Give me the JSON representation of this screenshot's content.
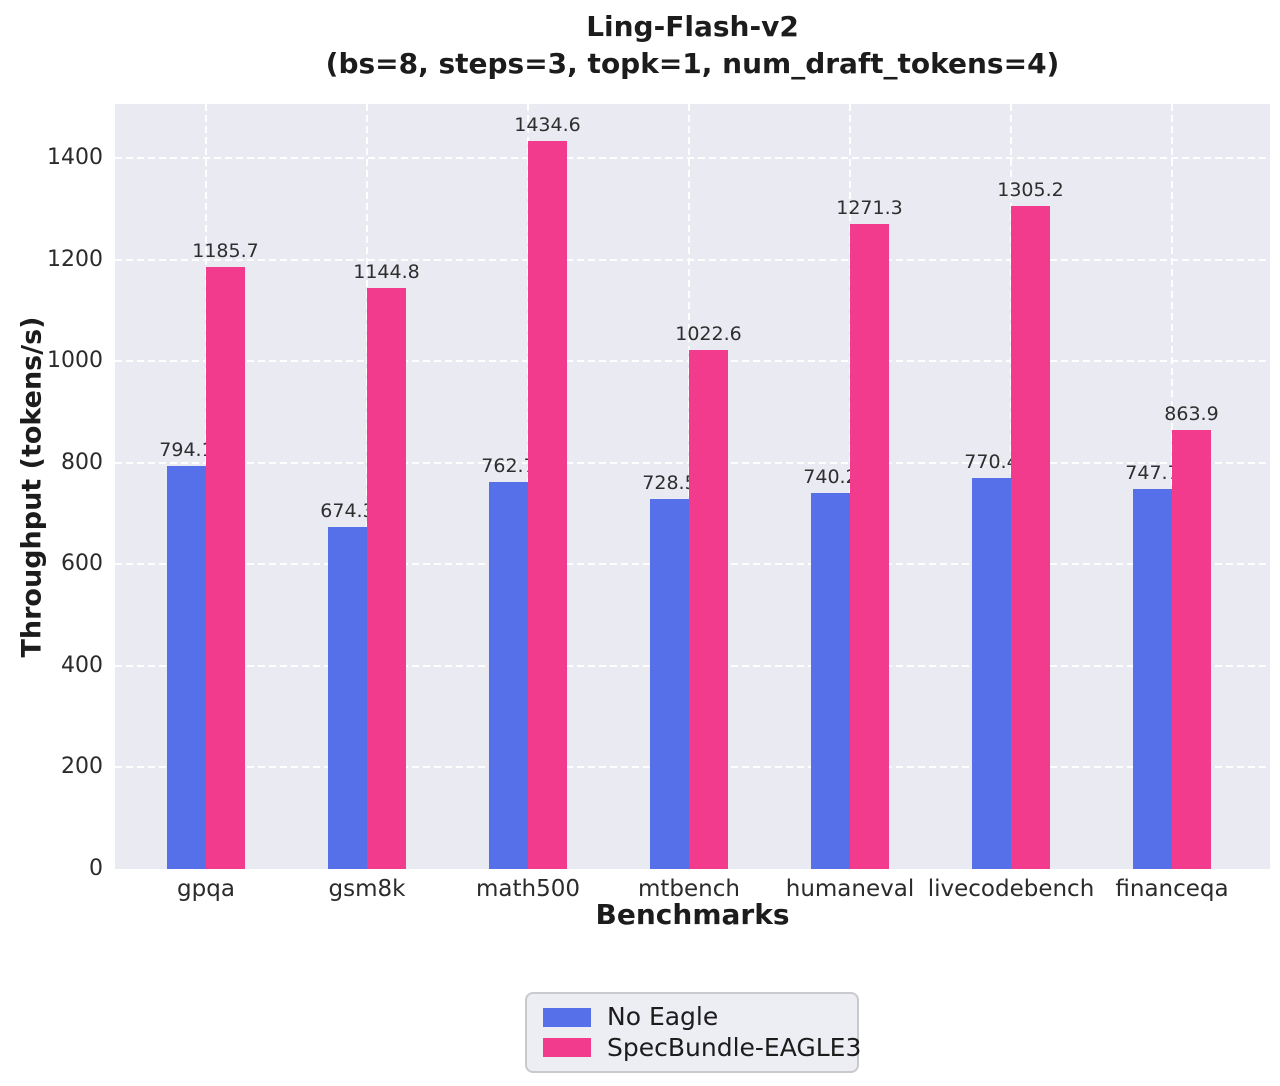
{
  "chart_data": {
    "type": "bar",
    "title": "Ling-Flash-v2",
    "subtitle": "(bs=8, steps=3, topk=1, num_draft_tokens=4)",
    "xlabel": "Benchmarks",
    "ylabel": "Throughput (tokens/s)",
    "categories": [
      "gpqa",
      "gsm8k",
      "math500",
      "mtbench",
      "humaneval",
      "livecodebench",
      "financeqa"
    ],
    "series": [
      {
        "name": "No Eagle",
        "color": "#5570e8",
        "values": [
          794.1,
          674.3,
          762.7,
          728.5,
          740.2,
          770.4,
          747.7
        ]
      },
      {
        "name": "SpecBundle-EAGLE3",
        "color": "#f23b8c",
        "values": [
          1185.7,
          1144.8,
          1434.6,
          1022.6,
          1271.3,
          1305.2,
          863.9
        ]
      }
    ],
    "yticks": [
      0,
      200,
      400,
      600,
      800,
      1000,
      1200,
      1400
    ],
    "ylim": [
      0,
      1507
    ],
    "grid": true,
    "grid_style": "dashed-white-horizontal-and-vertical",
    "plot_background": "#eaeaf2",
    "value_labels": true,
    "legend_position": "bottom-center"
  }
}
